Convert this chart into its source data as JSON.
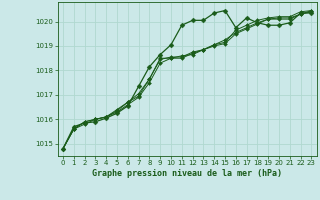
{
  "title": "Graphe pression niveau de la mer (hPa)",
  "bg_color": "#cbe8e8",
  "grid_color": "#b0d8d0",
  "line_color": "#1a5c1a",
  "marker_color": "#1a5c1a",
  "xlim": [
    -0.5,
    23.5
  ],
  "ylim": [
    1014.5,
    1020.8
  ],
  "xticks": [
    0,
    1,
    2,
    3,
    4,
    5,
    6,
    7,
    8,
    9,
    10,
    11,
    12,
    13,
    14,
    15,
    16,
    17,
    18,
    19,
    20,
    21,
    22,
    23
  ],
  "yticks": [
    1015,
    1016,
    1017,
    1018,
    1019,
    1020
  ],
  "series": [
    [
      1014.8,
      1015.7,
      1015.85,
      1015.9,
      1016.05,
      1016.25,
      1016.55,
      1017.35,
      1018.15,
      1018.65,
      1019.05,
      1019.85,
      1020.05,
      1020.05,
      1020.35,
      1020.45,
      1019.75,
      1020.15,
      1019.95,
      1019.85,
      1019.85,
      1019.95,
      1020.35,
      1020.35
    ],
    [
      1014.8,
      1015.6,
      1015.9,
      1016.0,
      1016.1,
      1016.35,
      1016.7,
      1017.05,
      1017.65,
      1018.5,
      1018.5,
      1018.6,
      1018.65,
      1018.85,
      1019.05,
      1019.25,
      1019.55,
      1019.75,
      1019.95,
      1020.1,
      1020.15,
      1020.15,
      1020.3,
      1020.45
    ],
    [
      1014.8,
      1015.6,
      1015.9,
      1016.0,
      1016.1,
      1016.4,
      1016.7,
      1016.95,
      1017.65,
      1018.45,
      1018.55,
      1018.55,
      1018.75,
      1018.85,
      1019.05,
      1019.15,
      1019.65,
      1019.85,
      1020.05,
      1020.15,
      1020.2,
      1020.2,
      1020.4,
      1020.45
    ],
    [
      1014.8,
      1015.6,
      1015.8,
      1016.0,
      1016.1,
      1016.3,
      1016.6,
      1016.9,
      1017.5,
      1018.3,
      1018.5,
      1018.5,
      1018.7,
      1018.85,
      1019.0,
      1019.1,
      1019.5,
      1019.7,
      1019.9,
      1020.1,
      1020.1,
      1020.1,
      1020.3,
      1020.4
    ]
  ]
}
